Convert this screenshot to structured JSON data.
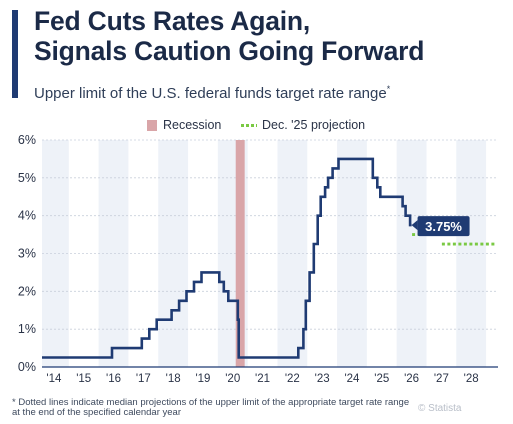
{
  "header": {
    "title_line1": "Fed Cuts Rates Again,",
    "title_line2": "Signals Caution Going Forward",
    "subtitle": "Upper limit of the U.S. federal funds target rate range",
    "subtitle_mark": "*"
  },
  "legend": {
    "recession_label": "Recession",
    "projection_label": "Dec. '25 projection"
  },
  "footnote": {
    "line1": "* Dotted lines indicate median projections of the upper limit of the appropriate target rate range",
    "line2": "at the end of the specified calendar year"
  },
  "credit": "© Statista",
  "colors": {
    "line": "#1f3b73",
    "projection": "#7ac943",
    "recession": "#d9a5a8",
    "band": "#eef2f8",
    "axis": "#1f3b73",
    "callout_bg": "#1f3b73",
    "callout_text": "#ffffff"
  },
  "chart_data": {
    "type": "line",
    "xlim": [
      2013.6,
      2028.9
    ],
    "ylim": [
      0,
      6
    ],
    "yticks": [
      0,
      1,
      2,
      3,
      4,
      5,
      6
    ],
    "ytick_labels": [
      "0%",
      "1%",
      "2%",
      "3%",
      "4%",
      "5%",
      "6%"
    ],
    "xticks": [
      2014,
      2015,
      2016,
      2017,
      2018,
      2019,
      2020,
      2021,
      2022,
      2023,
      2024,
      2025,
      2026,
      2027,
      2028
    ],
    "xtick_labels": [
      "'14",
      "'15",
      "'16",
      "'17",
      "'18",
      "'19",
      "'20",
      "'21",
      "'22",
      "'23",
      "'24",
      "'25",
      "'26",
      "'27",
      "'28"
    ],
    "grid": true,
    "legend_position": "top-center",
    "recession": {
      "label": "Recession",
      "start": 2020.1,
      "end": 2020.4
    },
    "series": [
      {
        "name": "Upper limit of federal funds target rate",
        "step": true,
        "points": [
          [
            2013.6,
            0.25
          ],
          [
            2015.95,
            0.5
          ],
          [
            2016.95,
            0.75
          ],
          [
            2017.2,
            1.0
          ],
          [
            2017.45,
            1.25
          ],
          [
            2017.95,
            1.5
          ],
          [
            2018.2,
            1.75
          ],
          [
            2018.45,
            2.0
          ],
          [
            2018.7,
            2.25
          ],
          [
            2018.95,
            2.5
          ],
          [
            2019.55,
            2.25
          ],
          [
            2019.7,
            2.0
          ],
          [
            2019.85,
            1.75
          ],
          [
            2020.17,
            1.25
          ],
          [
            2020.2,
            0.25
          ],
          [
            2022.2,
            0.5
          ],
          [
            2022.37,
            1.0
          ],
          [
            2022.45,
            1.75
          ],
          [
            2022.58,
            2.5
          ],
          [
            2022.72,
            3.25
          ],
          [
            2022.85,
            4.0
          ],
          [
            2022.95,
            4.5
          ],
          [
            2023.1,
            4.75
          ],
          [
            2023.2,
            5.0
          ],
          [
            2023.35,
            5.25
          ],
          [
            2023.55,
            5.5
          ],
          [
            2024.7,
            5.0
          ],
          [
            2024.85,
            4.75
          ],
          [
            2024.95,
            4.5
          ],
          [
            2025.7,
            4.25
          ],
          [
            2025.8,
            4.0
          ],
          [
            2025.95,
            3.75
          ],
          [
            2026.0,
            3.75
          ]
        ]
      },
      {
        "name": "Dec. '25 projection",
        "dotted": true,
        "segments": [
          {
            "from": 2025.95,
            "to": 2026.95,
            "value": 3.5
          },
          {
            "from": 2026.95,
            "to": 2028.85,
            "value": 3.25
          }
        ]
      }
    ],
    "annotations": [
      {
        "text": "3.75%",
        "x": 2026.0,
        "y": 3.75
      }
    ]
  }
}
